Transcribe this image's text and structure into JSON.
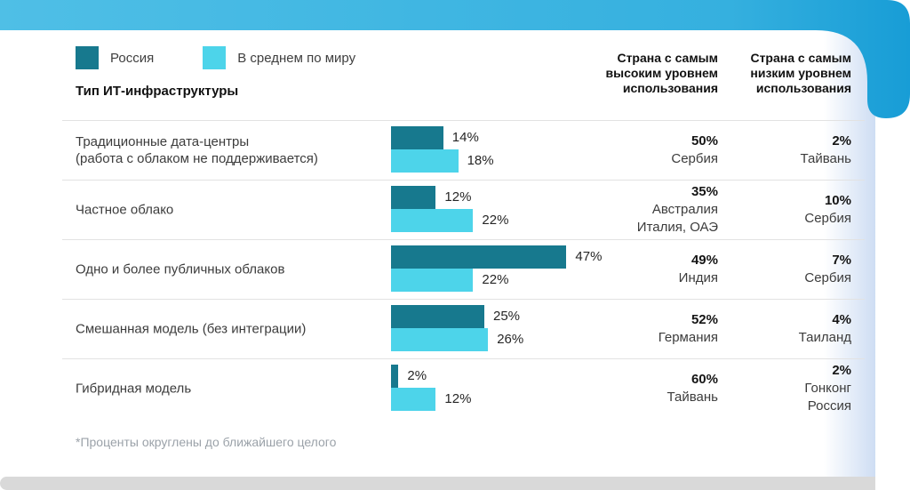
{
  "colors": {
    "accent_light": "#4FBFE6",
    "accent_mid": "#35B0DF",
    "accent_dark": "#189DD6",
    "russia": "#17798E",
    "world": "#4DD4EA",
    "divider": "#E2E2E2",
    "strip": "#D9D9D9",
    "edge_glow": "#CEDDF3"
  },
  "legend": {
    "items": [
      {
        "label": "Россия"
      },
      {
        "label": "В среднем по миру"
      }
    ]
  },
  "headers": {
    "type": "Тип ИТ-инфраструктуры",
    "high": "Страна с самым высоким уровнем использования",
    "low": "Страна с самым низким уровнем использования"
  },
  "rows": [
    {
      "label_lines": [
        "Традиционные дата-центры",
        "(работа с облаком не поддерживается)"
      ],
      "russia_label": "14%",
      "world_label": "18%",
      "high_pct": "50%",
      "high_countries": [
        "Сербия"
      ],
      "low_pct": "2%",
      "low_countries": [
        "Тайвань"
      ]
    },
    {
      "label_lines": [
        "Частное облако"
      ],
      "russia_label": "12%",
      "world_label": "22%",
      "high_pct": "35%",
      "high_countries": [
        "Австралия",
        "Италия, ОАЭ"
      ],
      "low_pct": "10%",
      "low_countries": [
        "Сербия"
      ]
    },
    {
      "label_lines": [
        "Одно и более публичных облаков"
      ],
      "russia_label": "47%",
      "world_label": "22%",
      "high_pct": "49%",
      "high_countries": [
        "Индия"
      ],
      "low_pct": "7%",
      "low_countries": [
        "Сербия"
      ]
    },
    {
      "label_lines": [
        "Смешанная модель (без интеграции)"
      ],
      "russia_label": "25%",
      "world_label": "26%",
      "high_pct": "52%",
      "high_countries": [
        "Германия"
      ],
      "low_pct": "4%",
      "low_countries": [
        "Таиланд"
      ]
    },
    {
      "label_lines": [
        "Гибридная модель"
      ],
      "russia_label": "2%",
      "world_label": "12%",
      "high_pct": "60%",
      "high_countries": [
        "Тайвань"
      ],
      "low_pct": "2%",
      "low_countries": [
        "Гонконг",
        "Россия"
      ]
    }
  ],
  "footnote": "*Проценты округлены до ближайшего целого",
  "chart_data": {
    "type": "bar",
    "orientation": "horizontal",
    "title": "Тип ИТ-инфраструктуры",
    "categories": [
      "Традиционные дата-центры (работа с облаком не поддерживается)",
      "Частное облако",
      "Одно и более публичных облаков",
      "Смешанная модель (без интеграции)",
      "Гибридная модель"
    ],
    "series": [
      {
        "name": "Россия",
        "values": [
          14,
          12,
          47,
          25,
          2
        ]
      },
      {
        "name": "В среднем по миру",
        "values": [
          18,
          22,
          22,
          26,
          12
        ]
      }
    ],
    "unit": "%",
    "xlim": [
      0,
      50
    ],
    "grid": false,
    "legend_position": "top-left",
    "annotations": {
      "highest_usage_country": [
        {
          "value": 50,
          "country": "Сербия"
        },
        {
          "value": 35,
          "country": "Австралия, Италия, ОАЭ"
        },
        {
          "value": 49,
          "country": "Индия"
        },
        {
          "value": 52,
          "country": "Германия"
        },
        {
          "value": 60,
          "country": "Тайвань"
        }
      ],
      "lowest_usage_country": [
        {
          "value": 2,
          "country": "Тайвань"
        },
        {
          "value": 10,
          "country": "Сербия"
        },
        {
          "value": 7,
          "country": "Сербия"
        },
        {
          "value": 4,
          "country": "Таиланд"
        },
        {
          "value": 2,
          "country": "Гонконг, Россия"
        }
      ]
    }
  }
}
